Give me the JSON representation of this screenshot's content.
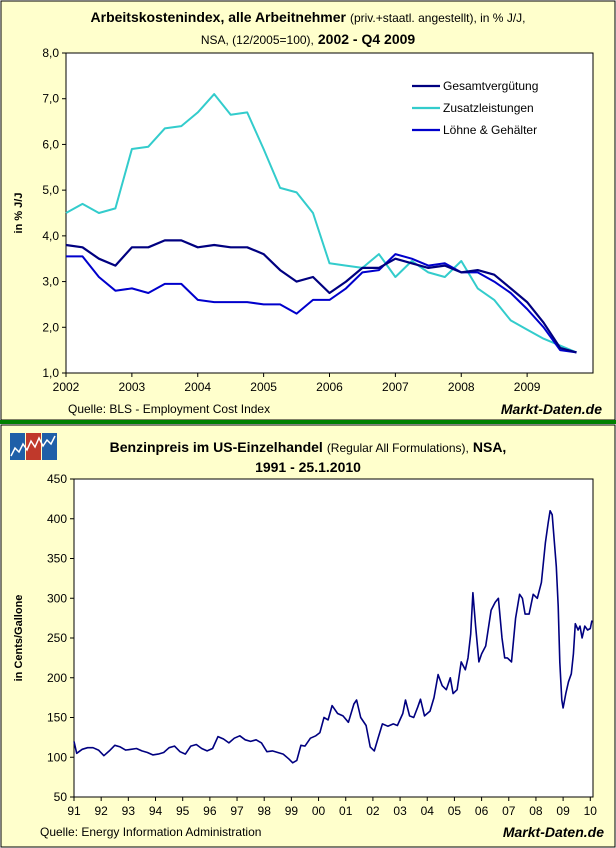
{
  "colors": {
    "panel_bg": "#ffffcc",
    "panel_border": "#000000",
    "separator": "#008000",
    "line_gesamt": "#000080",
    "line_zusatz": "#33cccc",
    "line_lohn": "#0000cc",
    "line_benzin": "#000080"
  },
  "chart1": {
    "title_bold": "Arbeitskostenindex, alle Arbeitnehmer",
    "title_normal": "(priv.+staatl. angestellt), in % J/J,",
    "title_line2_normal": "NSA, (12/2005=100),",
    "title_line2_bold": "2002 - Q4 2009",
    "ylabel": "in % J/J",
    "source": "Quelle: BLS - Employment Cost Index",
    "brand": "Markt-Daten.de",
    "ytick_labels": [
      "1,0",
      "2,0",
      "3,0",
      "4,0",
      "5,0",
      "6,0",
      "7,0",
      "8,0"
    ],
    "xtick_labels": [
      "2002",
      "2003",
      "2004",
      "2005",
      "2006",
      "2007",
      "2008",
      "2009"
    ]
  },
  "chart2": {
    "title_bold": "Benzinpreis im US-Einzelhandel",
    "title_normal": "(Regular All Formulations),",
    "title_bold2": "NSA,",
    "title_line2": "1991 - 25.1.2010",
    "ylabel": "in Cents/Gallone",
    "source": "Quelle: Energy Information Administration",
    "brand": "Markt-Daten.de",
    "ytick_labels": [
      "50",
      "100",
      "150",
      "200",
      "250",
      "300",
      "350",
      "400",
      "450"
    ],
    "xtick_labels": [
      "91",
      "92",
      "93",
      "94",
      "95",
      "96",
      "97",
      "98",
      "99",
      "00",
      "01",
      "02",
      "03",
      "04",
      "05",
      "06",
      "07",
      "08",
      "09",
      "10"
    ]
  },
  "chart_data": [
    {
      "type": "line",
      "title": "Arbeitskostenindex, alle Arbeitnehmer (priv.+staatl. angestellt), in % J/J, NSA, (12/2005=100), 2002 - Q4 2009",
      "xlabel": "",
      "ylabel": "in % J/J",
      "ylim": [
        1.0,
        8.0
      ],
      "xlim": [
        2002.0,
        2010.0
      ],
      "grid": false,
      "legend": "top-right",
      "x": [
        2002.0,
        2002.25,
        2002.5,
        2002.75,
        2003.0,
        2003.25,
        2003.5,
        2003.75,
        2004.0,
        2004.25,
        2004.5,
        2004.75,
        2005.0,
        2005.25,
        2005.5,
        2005.75,
        2006.0,
        2006.25,
        2006.5,
        2006.75,
        2007.0,
        2007.25,
        2007.5,
        2007.75,
        2008.0,
        2008.25,
        2008.5,
        2008.75,
        2009.0,
        2009.25,
        2009.5,
        2009.75
      ],
      "series": [
        {
          "name": "Gesamtvergütung",
          "values": [
            3.8,
            3.75,
            3.5,
            3.35,
            3.75,
            3.75,
            3.9,
            3.9,
            3.75,
            3.8,
            3.75,
            3.75,
            3.6,
            3.25,
            3.0,
            3.1,
            2.75,
            3.0,
            3.3,
            3.3,
            3.5,
            3.4,
            3.3,
            3.35,
            3.2,
            3.25,
            3.15,
            2.85,
            2.55,
            2.1,
            1.55,
            1.45
          ]
        },
        {
          "name": "Zusatzleistungen",
          "values": [
            4.5,
            4.7,
            4.5,
            4.6,
            5.9,
            5.95,
            6.35,
            6.4,
            6.7,
            7.1,
            6.65,
            6.7,
            5.9,
            5.05,
            4.95,
            4.5,
            3.4,
            3.35,
            3.3,
            3.6,
            3.1,
            3.45,
            3.2,
            3.1,
            3.45,
            2.85,
            2.6,
            2.15,
            1.95,
            1.75,
            1.6,
            1.45
          ]
        },
        {
          "name": "Löhne & Gehälter",
          "values": [
            3.55,
            3.55,
            3.1,
            2.8,
            2.85,
            2.75,
            2.95,
            2.95,
            2.6,
            2.55,
            2.55,
            2.55,
            2.5,
            2.5,
            2.3,
            2.6,
            2.6,
            2.85,
            3.2,
            3.25,
            3.6,
            3.5,
            3.35,
            3.4,
            3.2,
            3.2,
            3.0,
            2.75,
            2.4,
            2.0,
            1.5,
            1.45
          ]
        }
      ]
    },
    {
      "type": "line",
      "title": "Benzinpreis im US-Einzelhandel (Regular All Formulations), NSA, 1991 - 25.1.2010",
      "xlabel": "",
      "ylabel": "in Cents/Gallone",
      "ylim": [
        50,
        450
      ],
      "xlim": [
        1991.0,
        2010.1
      ],
      "grid": false,
      "series": [
        {
          "name": "",
          "points": [
            [
              1991.0,
              120
            ],
            [
              1991.1,
              105
            ],
            [
              1991.3,
              110
            ],
            [
              1991.5,
              112
            ],
            [
              1991.7,
              112
            ],
            [
              1991.9,
              109
            ],
            [
              1992.1,
              102
            ],
            [
              1992.3,
              108
            ],
            [
              1992.5,
              115
            ],
            [
              1992.7,
              113
            ],
            [
              1992.9,
              109
            ],
            [
              1993.1,
              110
            ],
            [
              1993.3,
              111
            ],
            [
              1993.5,
              108
            ],
            [
              1993.7,
              106
            ],
            [
              1993.9,
              103
            ],
            [
              1994.1,
              104
            ],
            [
              1994.3,
              106
            ],
            [
              1994.5,
              112
            ],
            [
              1994.7,
              114
            ],
            [
              1994.9,
              107
            ],
            [
              1995.1,
              104
            ],
            [
              1995.3,
              114
            ],
            [
              1995.5,
              116
            ],
            [
              1995.7,
              111
            ],
            [
              1995.9,
              108
            ],
            [
              1996.1,
              111
            ],
            [
              1996.3,
              126
            ],
            [
              1996.5,
              123
            ],
            [
              1996.7,
              118
            ],
            [
              1996.9,
              124
            ],
            [
              1997.1,
              127
            ],
            [
              1997.3,
              122
            ],
            [
              1997.5,
              120
            ],
            [
              1997.7,
              122
            ],
            [
              1997.9,
              118
            ],
            [
              1998.1,
              107
            ],
            [
              1998.3,
              108
            ],
            [
              1998.5,
              106
            ],
            [
              1998.7,
              104
            ],
            [
              1998.9,
              98
            ],
            [
              1999.05,
              93
            ],
            [
              1999.2,
              96
            ],
            [
              1999.35,
              115
            ],
            [
              1999.5,
              114
            ],
            [
              1999.7,
              124
            ],
            [
              1999.9,
              127
            ],
            [
              2000.05,
              131
            ],
            [
              2000.2,
              150
            ],
            [
              2000.35,
              147
            ],
            [
              2000.5,
              165
            ],
            [
              2000.7,
              155
            ],
            [
              2000.9,
              152
            ],
            [
              2001.1,
              144
            ],
            [
              2001.3,
              167
            ],
            [
              2001.4,
              172
            ],
            [
              2001.55,
              150
            ],
            [
              2001.75,
              140
            ],
            [
              2001.9,
              113
            ],
            [
              2002.05,
              108
            ],
            [
              2002.2,
              125
            ],
            [
              2002.35,
              142
            ],
            [
              2002.55,
              139
            ],
            [
              2002.75,
              142
            ],
            [
              2002.9,
              140
            ],
            [
              2003.1,
              155
            ],
            [
              2003.2,
              172
            ],
            [
              2003.35,
              152
            ],
            [
              2003.5,
              150
            ],
            [
              2003.65,
              163
            ],
            [
              2003.75,
              173
            ],
            [
              2003.9,
              152
            ],
            [
              2004.1,
              158
            ],
            [
              2004.25,
              175
            ],
            [
              2004.4,
              204
            ],
            [
              2004.55,
              190
            ],
            [
              2004.7,
              185
            ],
            [
              2004.85,
              200
            ],
            [
              2004.95,
              180
            ],
            [
              2005.1,
              185
            ],
            [
              2005.25,
              220
            ],
            [
              2005.4,
              210
            ],
            [
              2005.5,
              225
            ],
            [
              2005.6,
              255
            ],
            [
              2005.68,
              307
            ],
            [
              2005.78,
              265
            ],
            [
              2005.9,
              220
            ],
            [
              2006.0,
              230
            ],
            [
              2006.15,
              240
            ],
            [
              2006.35,
              285
            ],
            [
              2006.5,
              295
            ],
            [
              2006.62,
              300
            ],
            [
              2006.75,
              250
            ],
            [
              2006.85,
              225
            ],
            [
              2006.95,
              225
            ],
            [
              2007.1,
              220
            ],
            [
              2007.25,
              275
            ],
            [
              2007.4,
              305
            ],
            [
              2007.5,
              300
            ],
            [
              2007.6,
              280
            ],
            [
              2007.75,
              280
            ],
            [
              2007.9,
              305
            ],
            [
              2008.05,
              300
            ],
            [
              2008.2,
              320
            ],
            [
              2008.35,
              370
            ],
            [
              2008.45,
              395
            ],
            [
              2008.52,
              410
            ],
            [
              2008.6,
              405
            ],
            [
              2008.68,
              370
            ],
            [
              2008.75,
              340
            ],
            [
              2008.82,
              290
            ],
            [
              2008.88,
              220
            ],
            [
              2008.95,
              172
            ],
            [
              2009.0,
              162
            ],
            [
              2009.1,
              180
            ],
            [
              2009.2,
              195
            ],
            [
              2009.3,
              205
            ],
            [
              2009.38,
              230
            ],
            [
              2009.45,
              268
            ],
            [
              2009.55,
              260
            ],
            [
              2009.62,
              265
            ],
            [
              2009.7,
              250
            ],
            [
              2009.8,
              265
            ],
            [
              2009.9,
              260
            ],
            [
              2010.0,
              262
            ],
            [
              2010.06,
              272
            ]
          ]
        }
      ]
    }
  ]
}
